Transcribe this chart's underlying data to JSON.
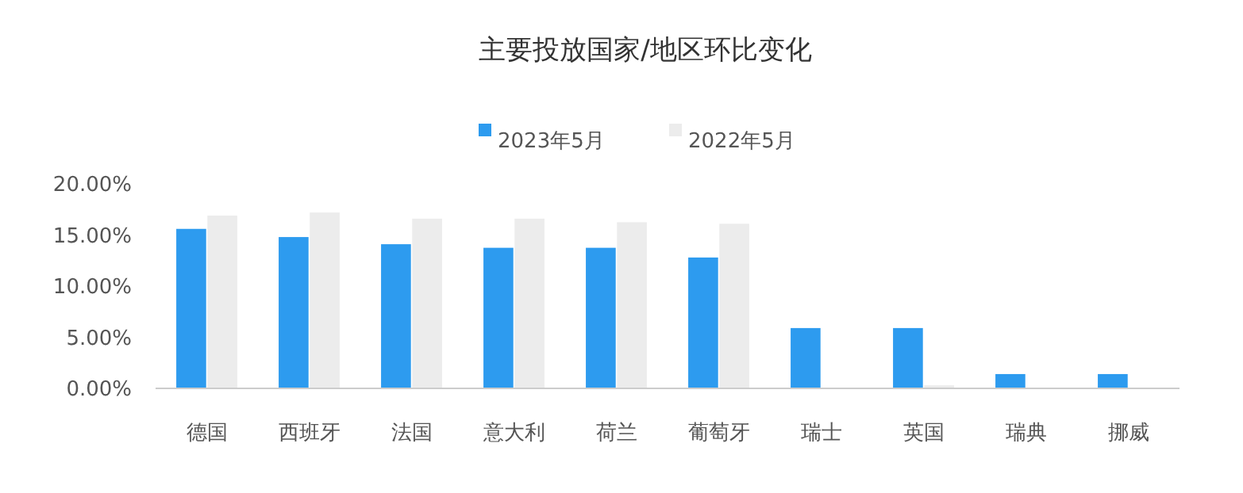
{
  "chart_data": {
    "type": "bar",
    "title": "主要投放国家/地区环比变化",
    "categories": [
      "德国",
      "西班牙",
      "法国",
      "意大利",
      "荷兰",
      "葡萄牙",
      "瑞士",
      "英国",
      "瑞典",
      "挪威"
    ],
    "series": [
      {
        "name": "2023年5月",
        "color": "#2d9bef",
        "values": [
          15.6,
          14.8,
          14.1,
          13.75,
          13.75,
          12.8,
          5.9,
          5.9,
          1.4,
          1.4
        ]
      },
      {
        "name": "2022年5月",
        "color": "#ececec",
        "values": [
          16.9,
          17.2,
          16.6,
          16.6,
          16.25,
          16.1,
          0,
          0.3,
          0,
          0
        ]
      }
    ],
    "ylim": [
      0,
      20
    ],
    "yticks": [
      {
        "value": 0,
        "label": "0.00%"
      },
      {
        "value": 5,
        "label": "5.00%"
      },
      {
        "value": 10,
        "label": "10.00%"
      },
      {
        "value": 15,
        "label": "15.00%"
      },
      {
        "value": 20,
        "label": "20.00%"
      }
    ],
    "grid": false,
    "legend": "top"
  }
}
